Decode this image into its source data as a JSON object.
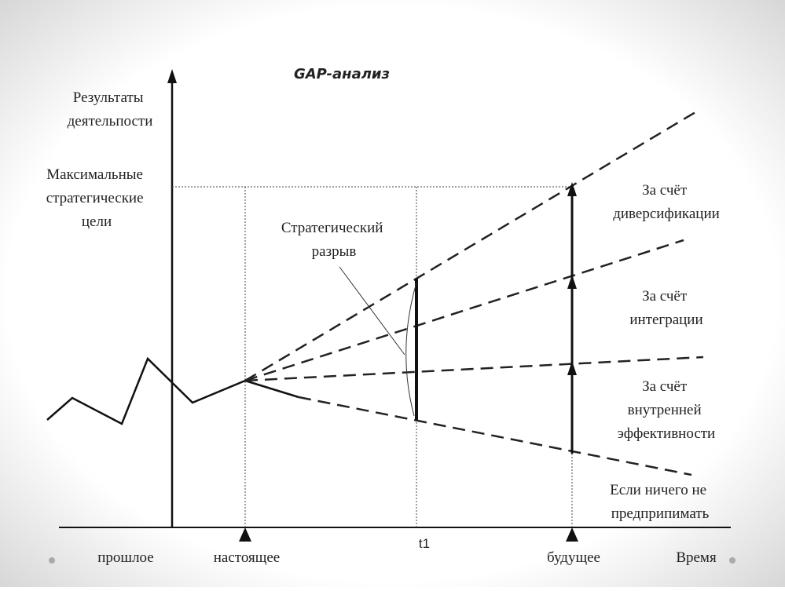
{
  "title": "GAP-анализ",
  "y_axis_label": [
    "Результаты",
    "деятельпости"
  ],
  "max_goals": [
    "Максимальные",
    "стратегические",
    "цели"
  ],
  "gap_label": [
    "Стратегический",
    "разрыв"
  ],
  "labels": [
    [
      "За счёт",
      "диверсификации"
    ],
    [
      "За счёт",
      "интеграции"
    ],
    [
      "За счёт",
      "внутренней",
      "эффективности"
    ],
    [
      "Если ничего не",
      "предприпимать"
    ]
  ],
  "x_labels": [
    "прошлое",
    "настоящее",
    "t1",
    "будущее",
    "Время"
  ]
}
